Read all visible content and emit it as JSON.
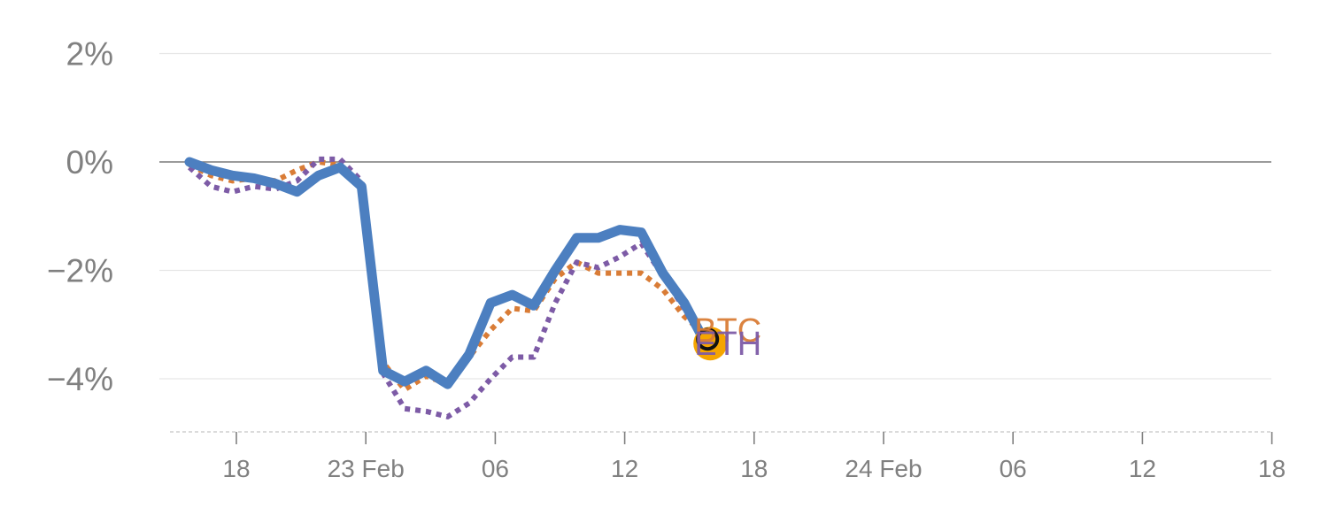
{
  "chart_data": {
    "type": "line",
    "title": "",
    "xlabel": "",
    "ylabel": "",
    "ylim": [
      -5,
      2.2
    ],
    "y_ticks": [
      {
        "value": 2,
        "label": "2%"
      },
      {
        "value": 0,
        "label": "0%"
      },
      {
        "value": -2,
        "label": "−2%"
      },
      {
        "value": -4,
        "label": "−4%"
      }
    ],
    "x_ticks": [
      "18",
      "23 Feb",
      "06",
      "12",
      "18",
      "24 Feb",
      "06",
      "12",
      "18"
    ],
    "grid": true,
    "zero_line": true,
    "series": [
      {
        "name": "",
        "color": "#4c7fc0",
        "style": "solid",
        "values": [
          0.0,
          -0.15,
          -0.25,
          -0.3,
          -0.4,
          -0.55,
          -0.25,
          -0.1,
          -0.45,
          -3.85,
          -4.05,
          -3.85,
          -4.1,
          -3.55,
          -2.6,
          -2.45,
          -2.65,
          -2.0,
          -1.4,
          -1.4,
          -1.25,
          -1.3,
          -2.05,
          -2.6,
          -3.35
        ]
      },
      {
        "name": "BTC",
        "color": "#d97c36",
        "style": "dotted",
        "values": [
          -0.05,
          -0.25,
          -0.35,
          -0.3,
          -0.35,
          -0.15,
          0.0,
          -0.05,
          -0.4,
          -3.7,
          -4.2,
          -3.95,
          -4.1,
          -3.6,
          -3.1,
          -2.7,
          -2.75,
          -2.15,
          -1.85,
          -2.05,
          -2.05,
          -2.05,
          -2.35,
          -2.85,
          -3.2
        ]
      },
      {
        "name": "ETH",
        "color": "#7d5ba6",
        "style": "dotted",
        "values": [
          -0.1,
          -0.45,
          -0.55,
          -0.45,
          -0.5,
          -0.35,
          0.05,
          0.05,
          -0.35,
          -3.9,
          -4.55,
          -4.6,
          -4.7,
          -4.45,
          -4.0,
          -3.6,
          -3.6,
          -2.6,
          -1.85,
          -1.95,
          -1.75,
          -1.5,
          -2.1,
          -2.7,
          -3.4
        ]
      }
    ],
    "end_marker": {
      "color": "#f5a500",
      "value": -3.35
    },
    "end_labels": [
      {
        "text": "BTC",
        "color": "#d97c36"
      },
      {
        "text": "ETH",
        "color": "#7d5ba6"
      }
    ]
  }
}
